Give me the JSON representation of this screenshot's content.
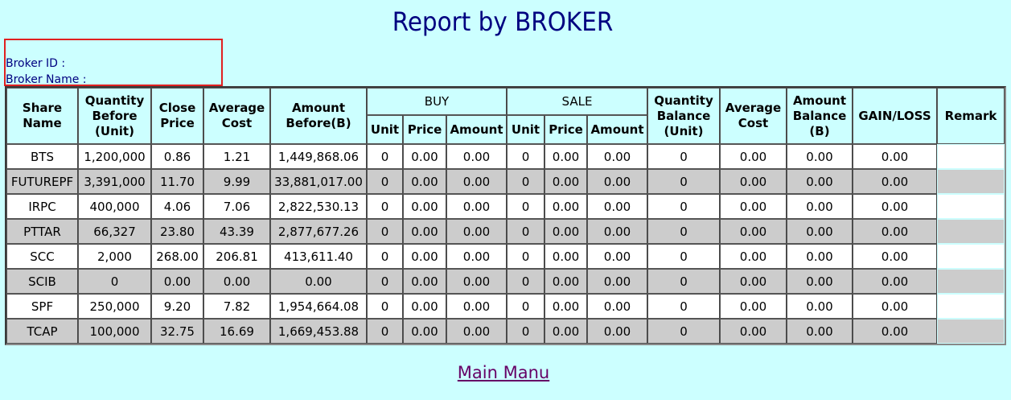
{
  "page": {
    "title": "Report by BROKER",
    "main_link": "Main Manu"
  },
  "broker": {
    "id_label": "Broker ID :",
    "name_label": "Broker Name :"
  },
  "table": {
    "headers": {
      "share_name": "Share Name",
      "qty_before": "Quantity Before (Unit)",
      "close_price": "Close Price",
      "average_cost": "Average Cost",
      "amount_before": "Amount Before(B)",
      "buy": "BUY",
      "sale": "SALE",
      "unit": "Unit",
      "price": "Price",
      "amount": "Amount",
      "qty_balance": "Quantity Balance (Unit)",
      "average_cost2": "Average Cost",
      "amount_balance": "Amount Balance (B)",
      "gain_loss": "GAIN/LOSS",
      "remark": "Remark"
    },
    "rows": [
      [
        "BTS",
        "1,200,000",
        "0.86",
        "1.21",
        "1,449,868.06",
        "0",
        "0.00",
        "0.00",
        "0",
        "0.00",
        "0.00",
        "0",
        "0.00",
        "0.00",
        "0.00",
        ""
      ],
      [
        "FUTUREPF",
        "3,391,000",
        "11.70",
        "9.99",
        "33,881,017.00",
        "0",
        "0.00",
        "0.00",
        "0",
        "0.00",
        "0.00",
        "0",
        "0.00",
        "0.00",
        "0.00",
        ""
      ],
      [
        "IRPC",
        "400,000",
        "4.06",
        "7.06",
        "2,822,530.13",
        "0",
        "0.00",
        "0.00",
        "0",
        "0.00",
        "0.00",
        "0",
        "0.00",
        "0.00",
        "0.00",
        ""
      ],
      [
        "PTTAR",
        "66,327",
        "23.80",
        "43.39",
        "2,877,677.26",
        "0",
        "0.00",
        "0.00",
        "0",
        "0.00",
        "0.00",
        "0",
        "0.00",
        "0.00",
        "0.00",
        ""
      ],
      [
        "SCC",
        "2,000",
        "268.00",
        "206.81",
        "413,611.40",
        "0",
        "0.00",
        "0.00",
        "0",
        "0.00",
        "0.00",
        "0",
        "0.00",
        "0.00",
        "0.00",
        ""
      ],
      [
        "SCIB",
        "0",
        "0.00",
        "0.00",
        "0.00",
        "0",
        "0.00",
        "0.00",
        "0",
        "0.00",
        "0.00",
        "0",
        "0.00",
        "0.00",
        "0.00",
        ""
      ],
      [
        "SPF",
        "250,000",
        "9.20",
        "7.82",
        "1,954,664.08",
        "0",
        "0.00",
        "0.00",
        "0",
        "0.00",
        "0.00",
        "0",
        "0.00",
        "0.00",
        "0.00",
        ""
      ],
      [
        "TCAP",
        "100,000",
        "32.75",
        "16.69",
        "1,669,453.88",
        "0",
        "0.00",
        "0.00",
        "0",
        "0.00",
        "0.00",
        "0",
        "0.00",
        "0.00",
        "0.00",
        ""
      ]
    ]
  }
}
